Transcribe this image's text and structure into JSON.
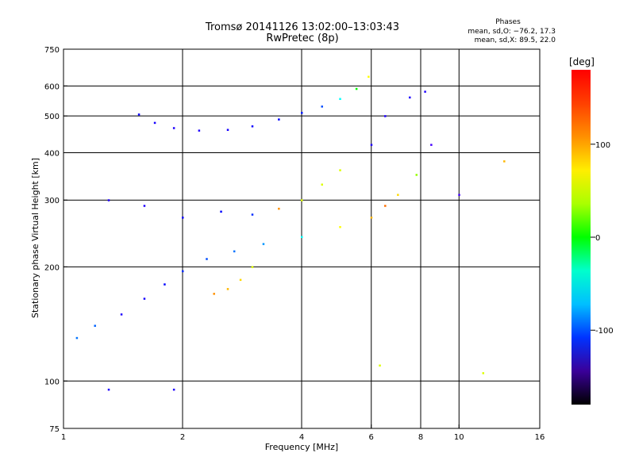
{
  "chart_data": {
    "type": "scatter",
    "title": "Tromsø 20141126 13:02:00–13:03:43",
    "subtitle": "RwPretec (8p)",
    "phase_info": {
      "heading": "Phases",
      "line1": "mean, sd,O:  −76.2,  17.3",
      "line2": "mean, sd,X:   89.5,  22.0"
    },
    "xlabel": "Frequency [MHz]",
    "ylabel": "Stationary phase Virtual Height [km]",
    "x_scale": "log",
    "y_scale": "log",
    "xlim": [
      1,
      16
    ],
    "ylim": [
      75,
      750
    ],
    "x_ticks": [
      1,
      2,
      4,
      6,
      8,
      10,
      16
    ],
    "x_tick_labels": [
      "1",
      "2",
      "4",
      "6",
      "8",
      "10",
      "16"
    ],
    "y_ticks": [
      75,
      100,
      200,
      300,
      400,
      500,
      600,
      750
    ],
    "y_tick_labels": [
      "75",
      "100",
      "200",
      "300",
      "400",
      "500",
      "600",
      "750"
    ],
    "x_gridlines": [
      2,
      4,
      6,
      8,
      10
    ],
    "y_gridlines": [
      100,
      200,
      300,
      400,
      500,
      600
    ],
    "colorbar": {
      "label": "[deg]",
      "range": [
        -180,
        180
      ],
      "ticks": [
        100,
        0,
        -100
      ],
      "tick_labels": [
        "100",
        "0",
        "-100"
      ]
    },
    "series": [
      {
        "points": [
          [
            1.55,
            505,
            -105
          ],
          [
            1.7,
            480,
            -108
          ],
          [
            1.9,
            465,
            -110
          ],
          [
            2.2,
            458,
            -110
          ],
          [
            2.6,
            460,
            -108
          ],
          [
            3.0,
            470,
            -105
          ],
          [
            3.5,
            490,
            -100
          ],
          [
            4.0,
            510,
            -95
          ],
          [
            4.5,
            530,
            -80
          ],
          [
            5.0,
            555,
            -30
          ],
          [
            5.5,
            590,
            40
          ],
          [
            5.9,
            635,
            110
          ],
          [
            1.08,
            130,
            -70
          ],
          [
            1.2,
            140,
            -75
          ],
          [
            1.4,
            150,
            -110
          ],
          [
            1.6,
            165,
            -108
          ],
          [
            1.8,
            180,
            -100
          ],
          [
            2.0,
            195,
            -90
          ],
          [
            2.3,
            210,
            -80
          ],
          [
            2.7,
            220,
            -70
          ],
          [
            3.2,
            230,
            -60
          ],
          [
            4.0,
            240,
            -30
          ],
          [
            5.0,
            255,
            110
          ],
          [
            6.0,
            270,
            130
          ],
          [
            6.5,
            290,
            150
          ],
          [
            7.0,
            310,
            120
          ],
          [
            7.8,
            350,
            80
          ],
          [
            1.3,
            300,
            -110
          ],
          [
            1.6,
            290,
            -110
          ],
          [
            2.0,
            270,
            -105
          ],
          [
            2.5,
            280,
            -100
          ],
          [
            3.0,
            275,
            -90
          ],
          [
            3.5,
            285,
            140
          ],
          [
            4.0,
            300,
            100
          ],
          [
            4.5,
            330,
            100
          ],
          [
            5.0,
            360,
            100
          ],
          [
            6.0,
            420,
            -110
          ],
          [
            6.5,
            500,
            -110
          ],
          [
            7.5,
            560,
            -110
          ],
          [
            2.4,
            170,
            140
          ],
          [
            2.6,
            175,
            130
          ],
          [
            2.8,
            185,
            120
          ],
          [
            3.0,
            200,
            100
          ],
          [
            8.2,
            580,
            -110
          ],
          [
            8.5,
            420,
            -120
          ],
          [
            10.0,
            310,
            -120
          ],
          [
            13.0,
            380,
            130
          ],
          [
            1.3,
            95,
            -110
          ],
          [
            1.9,
            95,
            -110
          ],
          [
            6.3,
            110,
            100
          ],
          [
            11.5,
            105,
            100
          ]
        ]
      }
    ]
  }
}
